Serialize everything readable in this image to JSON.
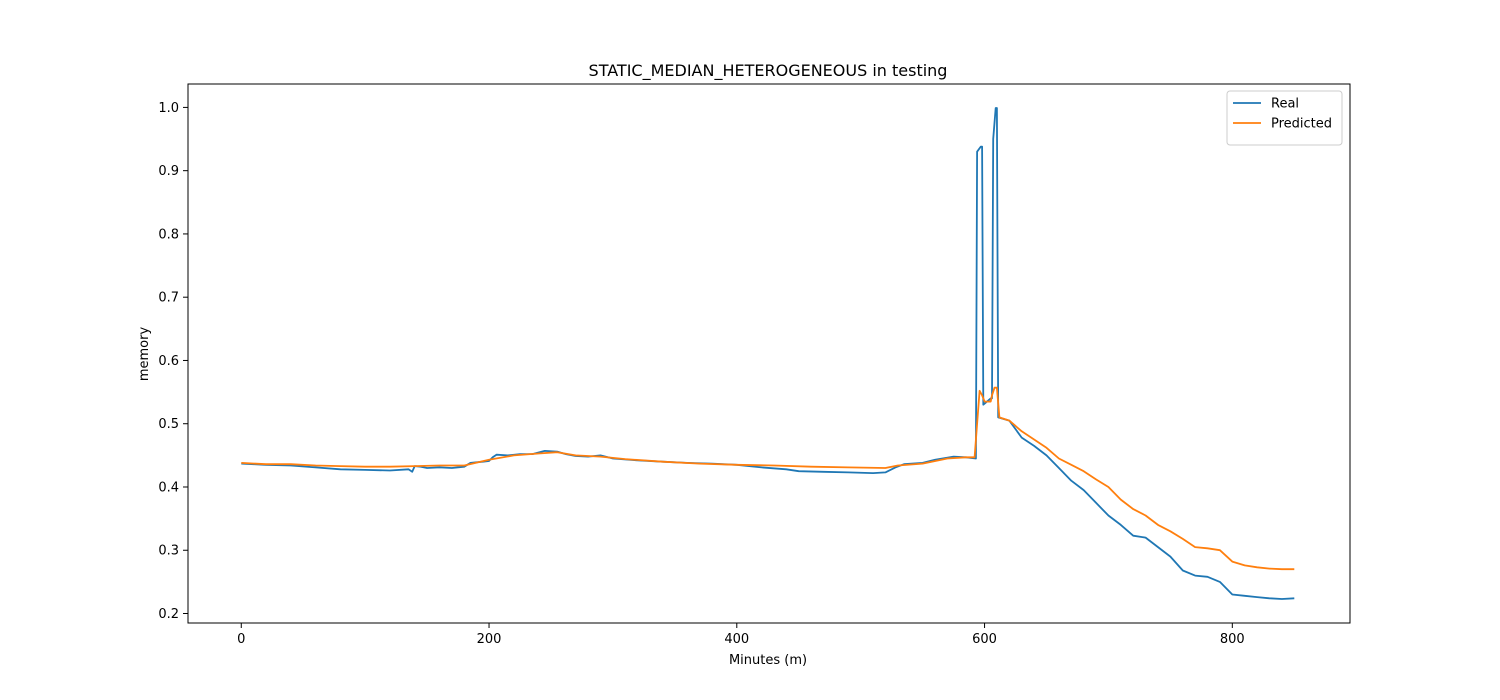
{
  "chart_data": {
    "type": "line",
    "title": "STATIC_MEDIAN_HETEROGENEOUS in testing",
    "xlabel": "Minutes (m)",
    "ylabel": "memory",
    "xlim": [
      -43,
      895
    ],
    "ylim": [
      0.185,
      1.037
    ],
    "xticks": [
      0,
      200,
      400,
      600,
      800
    ],
    "yticks": [
      0.2,
      0.3,
      0.4,
      0.5,
      0.6,
      0.7,
      0.8,
      0.9,
      1.0
    ],
    "grid": false,
    "legend_position": "top-right",
    "series": [
      {
        "name": "Real",
        "color": "#1f77b4",
        "points": [
          [
            0,
            0.437
          ],
          [
            10,
            0.436
          ],
          [
            20,
            0.435
          ],
          [
            40,
            0.434
          ],
          [
            60,
            0.431
          ],
          [
            80,
            0.428
          ],
          [
            100,
            0.427
          ],
          [
            120,
            0.426
          ],
          [
            135,
            0.428
          ],
          [
            138,
            0.424
          ],
          [
            140,
            0.433
          ],
          [
            145,
            0.432
          ],
          [
            150,
            0.43
          ],
          [
            160,
            0.431
          ],
          [
            170,
            0.43
          ],
          [
            180,
            0.432
          ],
          [
            185,
            0.438
          ],
          [
            195,
            0.44
          ],
          [
            200,
            0.441
          ],
          [
            203,
            0.447
          ],
          [
            206,
            0.451
          ],
          [
            215,
            0.45
          ],
          [
            225,
            0.452
          ],
          [
            235,
            0.452
          ],
          [
            245,
            0.457
          ],
          [
            255,
            0.456
          ],
          [
            262,
            0.452
          ],
          [
            270,
            0.449
          ],
          [
            280,
            0.448
          ],
          [
            290,
            0.45
          ],
          [
            300,
            0.445
          ],
          [
            320,
            0.442
          ],
          [
            340,
            0.44
          ],
          [
            360,
            0.438
          ],
          [
            380,
            0.437
          ],
          [
            400,
            0.435
          ],
          [
            420,
            0.431
          ],
          [
            440,
            0.428
          ],
          [
            450,
            0.425
          ],
          [
            470,
            0.424
          ],
          [
            490,
            0.423
          ],
          [
            510,
            0.422
          ],
          [
            520,
            0.423
          ],
          [
            528,
            0.431
          ],
          [
            535,
            0.436
          ],
          [
            550,
            0.438
          ],
          [
            560,
            0.443
          ],
          [
            575,
            0.448
          ],
          [
            585,
            0.447
          ],
          [
            593,
            0.445
          ],
          [
            594,
            0.93
          ],
          [
            597,
            0.938
          ],
          [
            598,
            0.938
          ],
          [
            599,
            0.53
          ],
          [
            605,
            0.54
          ],
          [
            606,
            0.54
          ],
          [
            607,
            0.95
          ],
          [
            609,
            0.999
          ],
          [
            610,
            0.999
          ],
          [
            611,
            0.51
          ],
          [
            620,
            0.505
          ],
          [
            630,
            0.478
          ],
          [
            640,
            0.465
          ],
          [
            650,
            0.45
          ],
          [
            660,
            0.43
          ],
          [
            670,
            0.41
          ],
          [
            680,
            0.395
          ],
          [
            690,
            0.375
          ],
          [
            700,
            0.355
          ],
          [
            710,
            0.34
          ],
          [
            720,
            0.323
          ],
          [
            730,
            0.32
          ],
          [
            740,
            0.305
          ],
          [
            750,
            0.29
          ],
          [
            760,
            0.268
          ],
          [
            770,
            0.26
          ],
          [
            780,
            0.258
          ],
          [
            790,
            0.25
          ],
          [
            800,
            0.23
          ],
          [
            810,
            0.228
          ],
          [
            820,
            0.226
          ],
          [
            830,
            0.224
          ],
          [
            840,
            0.223
          ],
          [
            850,
            0.224
          ]
        ]
      },
      {
        "name": "Predicted",
        "color": "#ff7f0e",
        "points": [
          [
            0,
            0.438
          ],
          [
            20,
            0.436
          ],
          [
            40,
            0.436
          ],
          [
            60,
            0.434
          ],
          [
            80,
            0.433
          ],
          [
            100,
            0.432
          ],
          [
            120,
            0.432
          ],
          [
            140,
            0.433
          ],
          [
            160,
            0.434
          ],
          [
            180,
            0.434
          ],
          [
            200,
            0.443
          ],
          [
            220,
            0.45
          ],
          [
            240,
            0.453
          ],
          [
            255,
            0.455
          ],
          [
            270,
            0.45
          ],
          [
            290,
            0.448
          ],
          [
            310,
            0.444
          ],
          [
            340,
            0.44
          ],
          [
            370,
            0.437
          ],
          [
            400,
            0.435
          ],
          [
            430,
            0.434
          ],
          [
            460,
            0.432
          ],
          [
            490,
            0.431
          ],
          [
            520,
            0.43
          ],
          [
            530,
            0.434
          ],
          [
            550,
            0.437
          ],
          [
            570,
            0.445
          ],
          [
            585,
            0.447
          ],
          [
            592,
            0.447
          ],
          [
            594,
            0.5
          ],
          [
            596,
            0.552
          ],
          [
            598,
            0.545
          ],
          [
            600,
            0.535
          ],
          [
            605,
            0.535
          ],
          [
            606,
            0.545
          ],
          [
            608,
            0.557
          ],
          [
            610,
            0.557
          ],
          [
            612,
            0.51
          ],
          [
            620,
            0.505
          ],
          [
            630,
            0.488
          ],
          [
            640,
            0.475
          ],
          [
            650,
            0.462
          ],
          [
            660,
            0.445
          ],
          [
            670,
            0.435
          ],
          [
            680,
            0.425
          ],
          [
            690,
            0.412
          ],
          [
            700,
            0.4
          ],
          [
            710,
            0.38
          ],
          [
            720,
            0.365
          ],
          [
            730,
            0.355
          ],
          [
            740,
            0.34
          ],
          [
            750,
            0.33
          ],
          [
            760,
            0.318
          ],
          [
            770,
            0.305
          ],
          [
            780,
            0.303
          ],
          [
            790,
            0.3
          ],
          [
            800,
            0.282
          ],
          [
            810,
            0.276
          ],
          [
            820,
            0.273
          ],
          [
            830,
            0.271
          ],
          [
            840,
            0.27
          ],
          [
            850,
            0.27
          ]
        ]
      }
    ]
  }
}
